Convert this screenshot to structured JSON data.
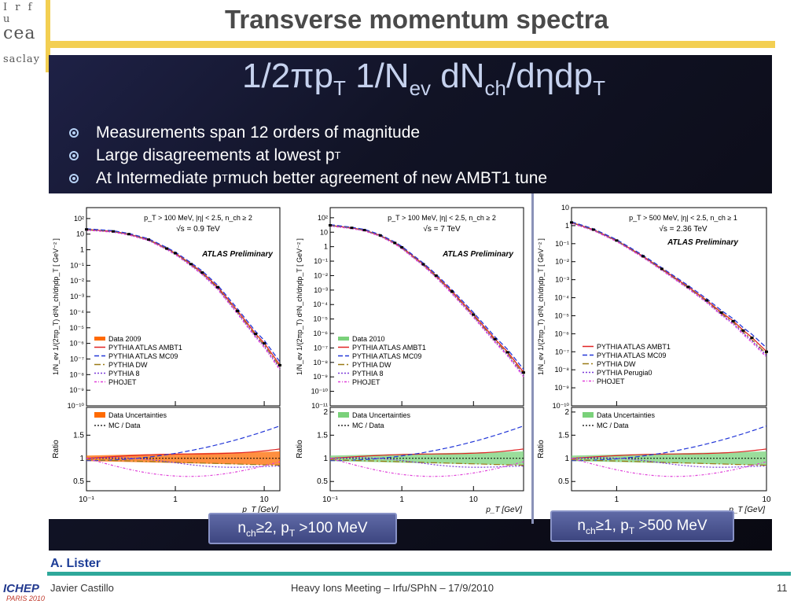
{
  "slide": {
    "title": "Transverse momentum spectra",
    "formula": {
      "a": "1/2πp",
      "a_sub": "T",
      "b": " 1/N",
      "b_sub": "ev",
      "c": " dN",
      "c_sub": "ch",
      "d": "/dηdp",
      "d_sub": "T"
    },
    "bullets": [
      {
        "text": "Measurements span 12 orders of magnitude",
        "sub": ""
      },
      {
        "text": "Large disagreements at lowest p",
        "sub": "T"
      },
      {
        "text": "At Intermediate p",
        "sub": "T",
        "after": " much better agreement of new AMBT1 tune"
      }
    ],
    "caption_left": {
      "a": "n",
      "a_sub": "ch",
      "b": "≥2, p",
      "b_sub": "T",
      "c": " >100 MeV"
    },
    "caption_right": {
      "a": "n",
      "a_sub": "ch",
      "b": "≥1, p",
      "b_sub": "T",
      "c": " >500 MeV"
    },
    "author": "A. Lister",
    "footer": {
      "presenter": "Javier Castillo",
      "meeting": "Heavy Ions Meeting – Irfu/SPhN – 17/9/2010",
      "page": "11"
    },
    "logos": {
      "irfu": "I r f u",
      "cea": "cea",
      "saclay": "saclay",
      "ichep": "ICHEP",
      "ichep_sub": "PARIS 2010"
    },
    "colors": {
      "gold": "#f3cf52",
      "teal": "#2ea89a",
      "author_blue": "#1d3d97"
    }
  },
  "chart_data": [
    {
      "type": "line",
      "cuts": "p_T > 100 MeV, |η| < 2.5, n_ch ≥ 2",
      "energy": "√s = 0.9 TeV",
      "label": "ATLAS Preliminary",
      "ylabel": "1/N_ev 1/(2πp_T) d²N_ch/dηdp_T [ GeV⁻² ]",
      "xlabel": "p_T [GeV]",
      "xscale": "log",
      "yscale": "log",
      "xlim": [
        0.1,
        15
      ],
      "ylim": [
        1e-10,
        500
      ],
      "yticks": [
        "10²",
        "10",
        "1",
        "10⁻¹",
        "10⁻²",
        "10⁻³",
        "10⁻⁴",
        "10⁻⁵",
        "10⁻⁶",
        "10⁻⁷",
        "10⁻⁸",
        "10⁻⁹",
        "10⁻¹⁰"
      ],
      "xticks": [
        "10⁻¹",
        "1",
        "10"
      ],
      "legend": [
        "Data 2009",
        "PYTHIA ATLAS AMBT1",
        "PYTHIA ATLAS MC09",
        "PYTHIA DW",
        "PYTHIA 8",
        "PHOJET"
      ],
      "data": {
        "x": [
          0.1,
          0.2,
          0.3,
          0.5,
          0.8,
          1,
          1.5,
          2,
          3,
          5,
          8,
          10,
          15
        ],
        "y": [
          20,
          15,
          10,
          4.5,
          1.2,
          0.6,
          0.12,
          0.035,
          0.004,
          0.00012,
          4e-06,
          1e-06,
          4e-08
        ]
      },
      "ratio": {
        "ylabel": "Ratio",
        "yticks": [
          "1.5",
          "1",
          "0.5"
        ],
        "ylim": [
          0.3,
          2.1
        ],
        "legend": [
          "Data Uncertainties",
          "MC / Data"
        ]
      }
    },
    {
      "type": "line",
      "cuts": "p_T > 100 MeV, |η| < 2.5, n_ch ≥ 2",
      "energy": "√s = 7 TeV",
      "label": "ATLAS Preliminary",
      "ylabel": "1/N_ev 1/(2πp_T) d²N_ch/dηdp_T [ GeV⁻² ]",
      "xlabel": "p_T [GeV]",
      "xscale": "log",
      "yscale": "log",
      "xlim": [
        0.1,
        50
      ],
      "ylim": [
        1e-11,
        500
      ],
      "yticks": [
        "10²",
        "10",
        "1",
        "10⁻¹",
        "10⁻²",
        "10⁻³",
        "10⁻⁴",
        "10⁻⁵",
        "10⁻⁶",
        "10⁻⁷",
        "10⁻⁸",
        "10⁻⁹",
        "10⁻¹⁰",
        "10⁻¹¹"
      ],
      "xticks": [
        "10⁻¹",
        "1",
        "10"
      ],
      "legend": [
        "Data 2010",
        "PYTHIA ATLAS AMBT1",
        "PYTHIA ATLAS MC09",
        "PYTHIA DW",
        "PYTHIA 8",
        "PHOJET"
      ],
      "data": {
        "x": [
          0.1,
          0.2,
          0.3,
          0.5,
          0.8,
          1,
          2,
          3,
          5,
          10,
          20,
          30,
          50
        ],
        "y": [
          30,
          20,
          14,
          6,
          1.8,
          0.9,
          0.06,
          0.01,
          0.0008,
          2e-05,
          4e-07,
          5e-08,
          2e-09
        ]
      },
      "ratio": {
        "ylabel": "Ratio",
        "yticks": [
          "2",
          "1.5",
          "1",
          "0.5"
        ],
        "ylim": [
          0.3,
          2.1
        ],
        "legend": [
          "Data Uncertainties",
          "MC / Data"
        ]
      }
    },
    {
      "type": "line",
      "cuts": "p_T > 500 MeV, |η| < 2.5, n_ch ≥ 1",
      "energy": "√s = 2.36 TeV",
      "label": "ATLAS Preliminary",
      "ylabel": "1/N_ev 1/(2πp_T) d²N_ch/dηdp_T [ GeV⁻² ]",
      "xlabel": "p_T [GeV]",
      "xscale": "log",
      "yscale": "log",
      "xlim": [
        0.5,
        10
      ],
      "ylim": [
        1e-10,
        10
      ],
      "yticks": [
        "10",
        "1",
        "10⁻¹",
        "10⁻²",
        "10⁻³",
        "10⁻⁴",
        "10⁻⁵",
        "10⁻⁶",
        "10⁻⁷",
        "10⁻⁸",
        "10⁻⁹",
        "10⁻¹⁰"
      ],
      "xticks": [
        "1",
        "10"
      ],
      "legend": [
        "PYTHIA ATLAS AMBT1",
        "PYTHIA ATLAS MC09",
        "PYTHIA DW",
        "PYTHIA Perugia0",
        "PHOJET"
      ],
      "data": {
        "x": [
          0.5,
          0.7,
          1,
          1.5,
          2,
          3,
          4,
          5,
          6,
          7,
          8,
          10
        ],
        "y": [
          1.5,
          0.6,
          0.15,
          0.02,
          0.004,
          0.0004,
          7e-05,
          1.5e-05,
          5e-06,
          1.5e-06,
          6e-07,
          1e-07
        ]
      },
      "ratio": {
        "ylabel": "Ratio",
        "yticks": [
          "2",
          "1.5",
          "1",
          "0.5"
        ],
        "ylim": [
          0.3,
          2.1
        ],
        "legend": [
          "Data Uncertainties",
          "MC / Data"
        ]
      }
    }
  ]
}
